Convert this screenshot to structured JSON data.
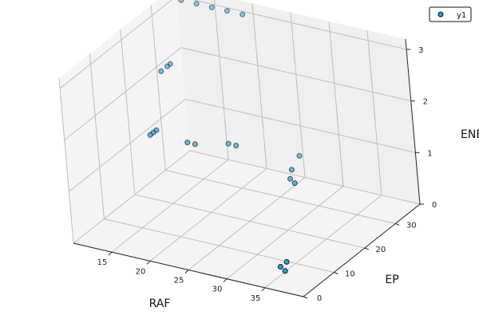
{
  "chart_data": {
    "type": "scatter",
    "title": "",
    "xlabel": "RAF",
    "ylabel": "EP",
    "zlabel": "ENE",
    "xlim": [
      10,
      40
    ],
    "ylim": [
      0,
      38
    ],
    "zlim": [
      0,
      3.2
    ],
    "x_ticks": [
      15,
      20,
      25,
      30,
      35
    ],
    "y_ticks": [
      0,
      10,
      20,
      30
    ],
    "z_ticks": [
      0,
      1,
      2,
      3
    ],
    "grid": true,
    "legend_position": "top-right",
    "marker_color": "#1f9be0",
    "series": [
      {
        "name": "y1",
        "points": [
          {
            "x": 11,
            "y": 37,
            "z": 3.0
          },
          {
            "x": 13,
            "y": 37,
            "z": 3.0
          },
          {
            "x": 15,
            "y": 37,
            "z": 3.0
          },
          {
            "x": 17,
            "y": 37,
            "z": 3.0
          },
          {
            "x": 19,
            "y": 37,
            "z": 3.0
          },
          {
            "x": 11,
            "y": 32,
            "z": 2.0
          },
          {
            "x": 11,
            "y": 31,
            "z": 2.0
          },
          {
            "x": 11,
            "y": 29,
            "z": 2.0
          },
          {
            "x": 11,
            "y": 26,
            "z": 1.0
          },
          {
            "x": 11,
            "y": 25,
            "z": 1.0
          },
          {
            "x": 11,
            "y": 24,
            "z": 1.0
          },
          {
            "x": 15,
            "y": 26,
            "z": 0.9
          },
          {
            "x": 16,
            "y": 26,
            "z": 0.9
          },
          {
            "x": 20,
            "y": 27,
            "z": 1.0
          },
          {
            "x": 21,
            "y": 27,
            "z": 1.0
          },
          {
            "x": 28,
            "y": 30,
            "z": 0.9
          },
          {
            "x": 29,
            "y": 25,
            "z": 0.9
          },
          {
            "x": 30,
            "y": 22,
            "z": 0.9
          },
          {
            "x": 31,
            "y": 21,
            "z": 0.9
          },
          {
            "x": 36,
            "y": 5,
            "z": 0.3
          },
          {
            "x": 36,
            "y": 3,
            "z": 0.3
          },
          {
            "x": 37,
            "y": 2,
            "z": 0.3
          }
        ]
      }
    ]
  }
}
